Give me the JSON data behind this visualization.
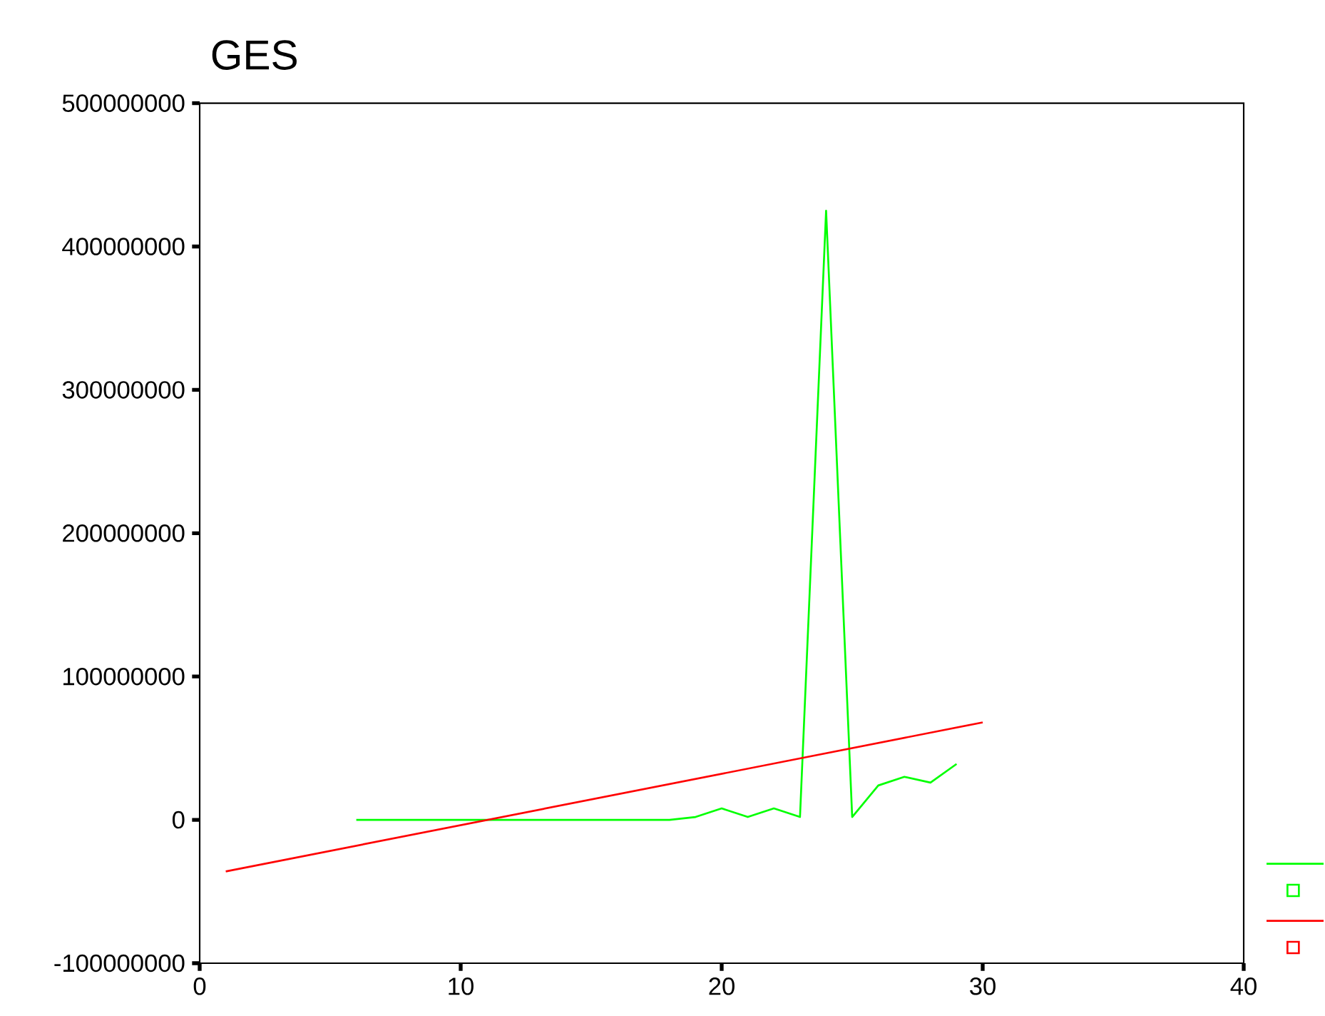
{
  "chart_data": {
    "type": "line",
    "title": "GES",
    "xlim": [
      0,
      40
    ],
    "xticks": [
      0,
      10,
      20,
      30,
      40
    ],
    "ylim": [
      -100000000,
      500000000
    ],
    "yticks": [
      -100000000,
      0,
      100000000,
      200000000,
      300000000,
      400000000,
      500000000
    ],
    "grid": false,
    "series": [
      {
        "color": "#00ff00",
        "x": [
          6,
          7,
          8,
          9,
          10,
          11,
          12,
          13,
          14,
          15,
          16,
          17,
          18,
          19,
          20,
          21,
          22,
          23,
          24,
          25,
          26,
          27,
          28,
          29
        ],
        "values": [
          0,
          0,
          0,
          0,
          0,
          0,
          0,
          0,
          0,
          0,
          0,
          0,
          0,
          2000000,
          8000000,
          2000000,
          8000000,
          2000000,
          425000000,
          2000000,
          24000000,
          30000000,
          26000000,
          39000000
        ]
      },
      {
        "color": "#ff0000",
        "x": [
          1,
          30
        ],
        "values": [
          -36000000,
          68000000
        ]
      }
    ]
  }
}
